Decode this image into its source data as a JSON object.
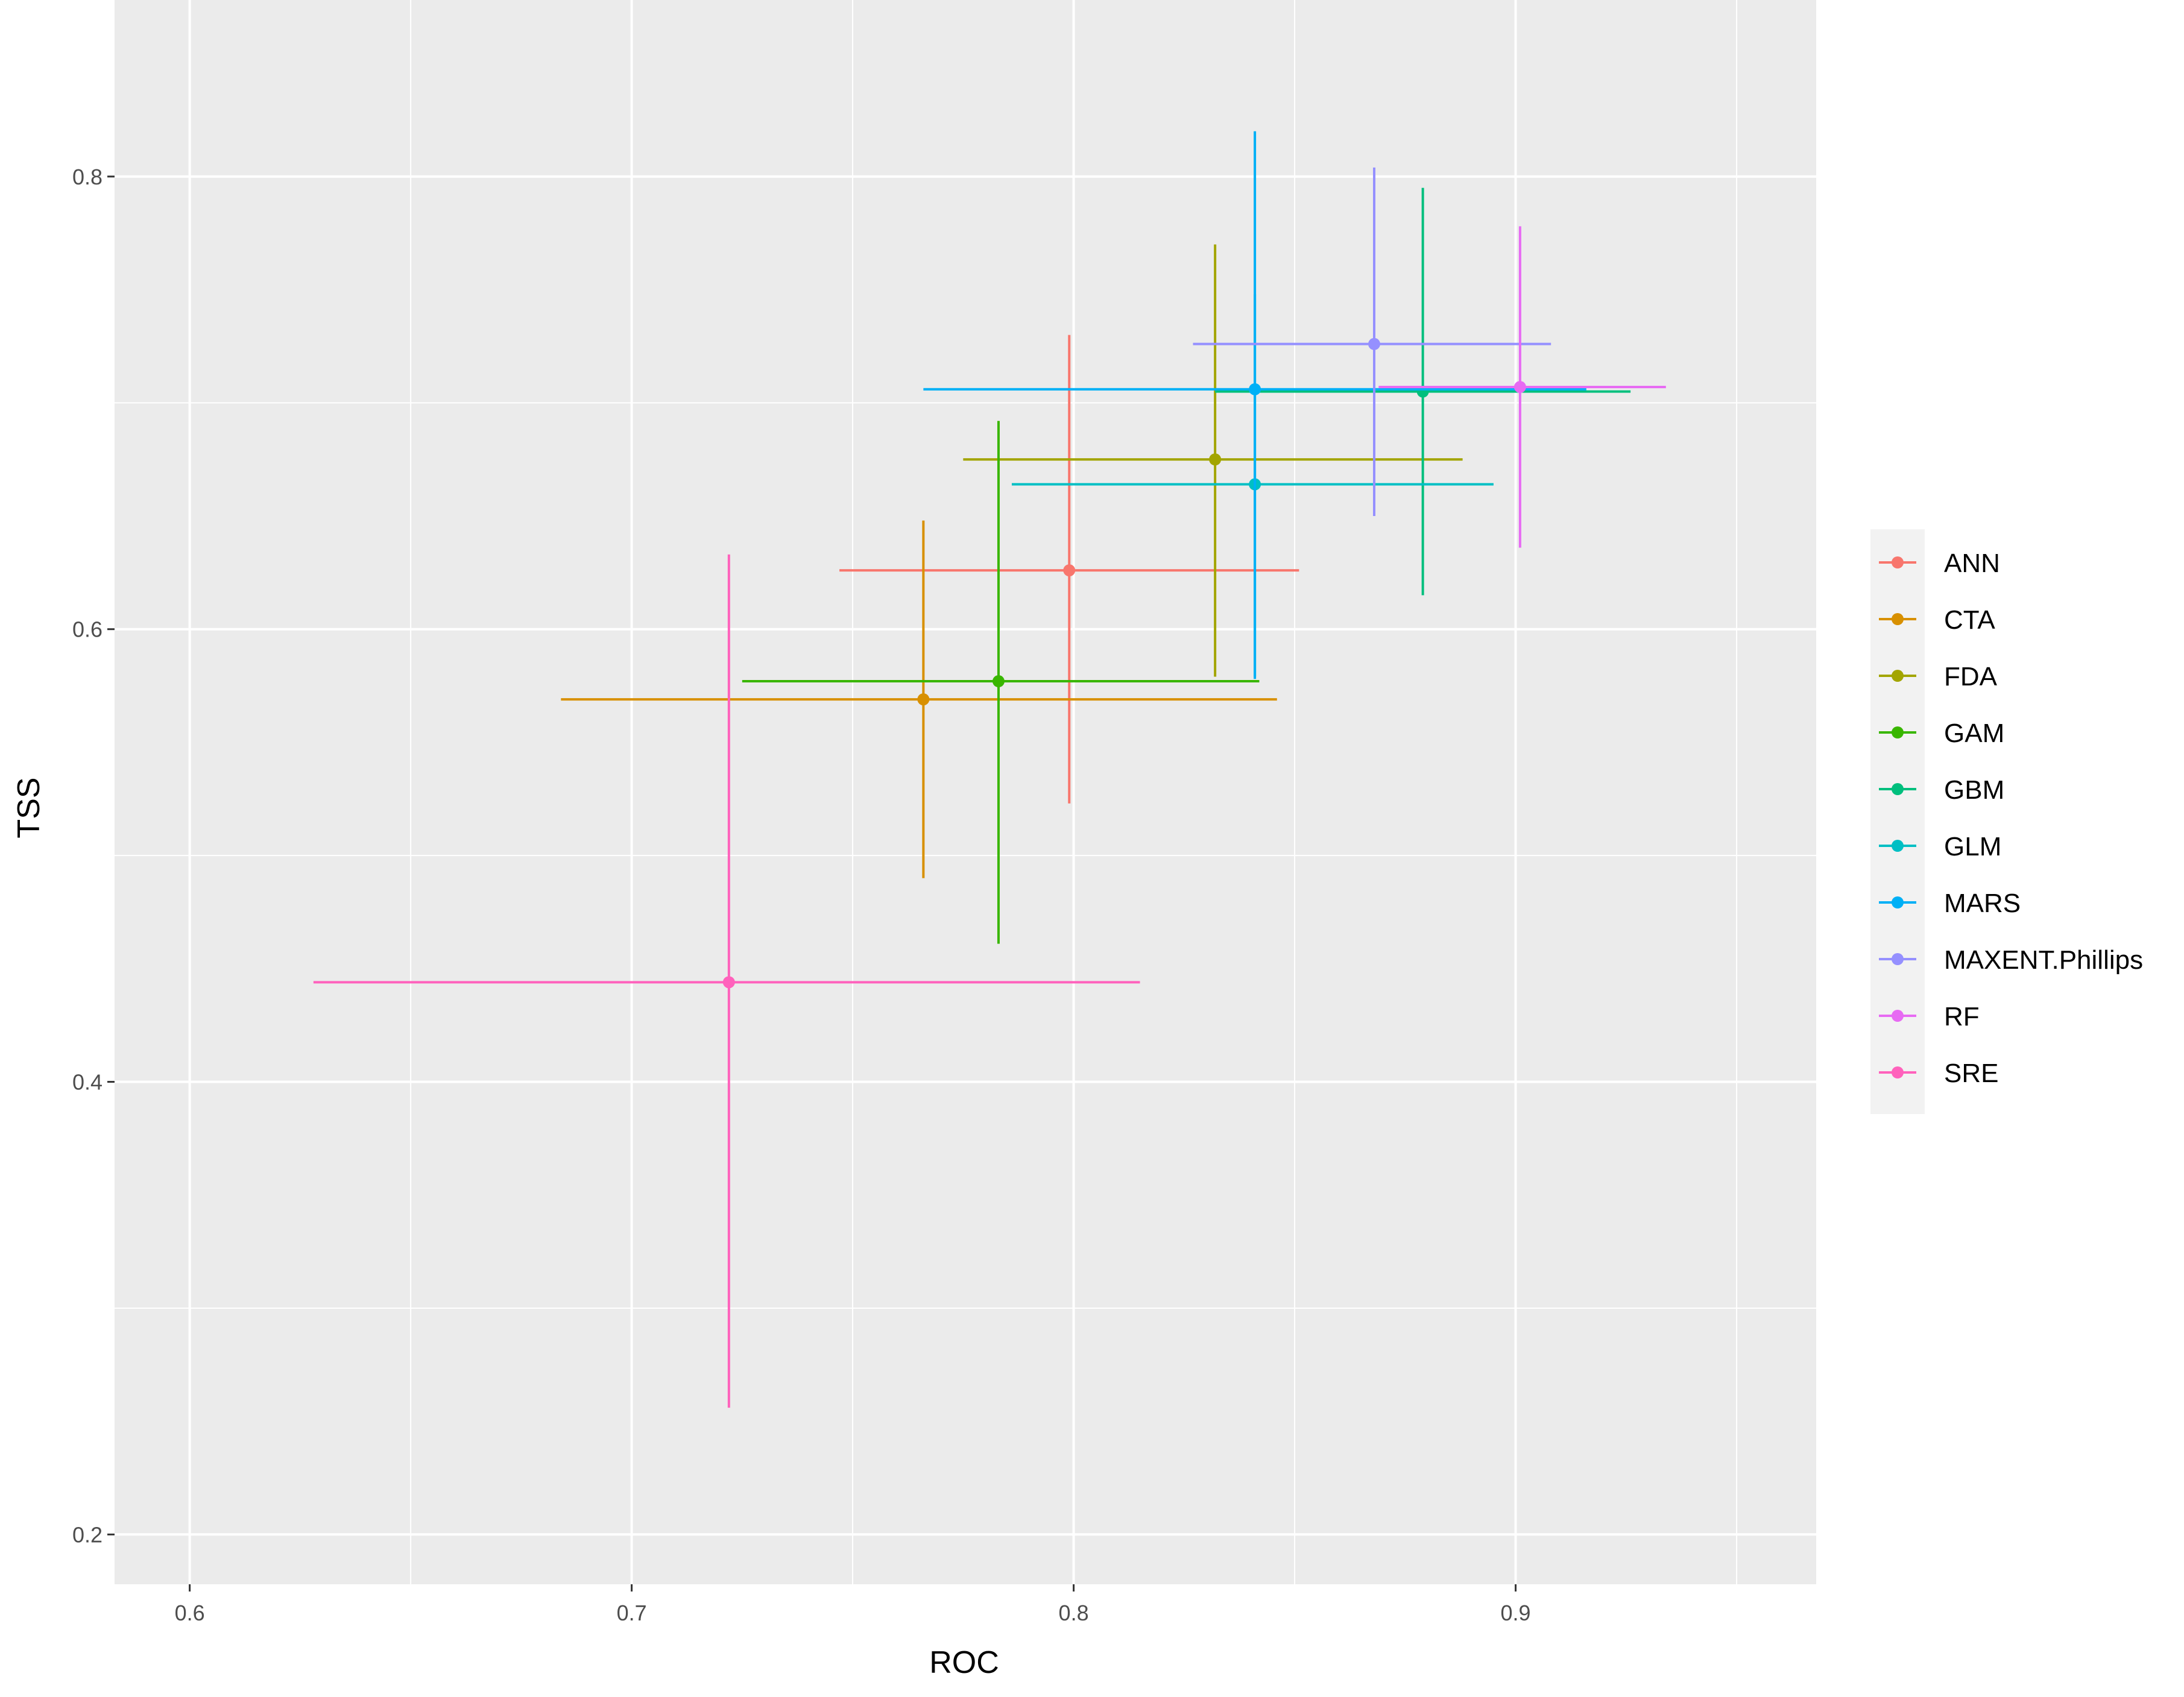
{
  "chart_data": {
    "type": "scatter",
    "title": "",
    "xlabel": "ROC",
    "ylabel": "TSS",
    "xlim": [
      0.583,
      0.968
    ],
    "ylim": [
      0.178,
      0.878
    ],
    "xticks": [
      0.6,
      0.7,
      0.8,
      0.9
    ],
    "yticks": [
      0.2,
      0.4,
      0.6,
      0.8
    ],
    "xtick_labels": [
      "0.6",
      "0.7",
      "0.8",
      "0.9"
    ],
    "ytick_labels": [
      "0.2",
      "0.4",
      "0.6",
      "0.8"
    ],
    "grid": true,
    "legend_position": "right",
    "error_bars": "horizontal bars show ROC range, vertical bars show TSS range",
    "series": [
      {
        "name": "ANN",
        "color": "#F8766D",
        "x": 0.799,
        "y": 0.626,
        "xmin": 0.747,
        "xmax": 0.851,
        "ymin": 0.523,
        "ymax": 0.73
      },
      {
        "name": "CTA",
        "color": "#D89000",
        "x": 0.766,
        "y": 0.569,
        "xmin": 0.684,
        "xmax": 0.846,
        "ymin": 0.49,
        "ymax": 0.648
      },
      {
        "name": "FDA",
        "color": "#A3A500",
        "x": 0.832,
        "y": 0.675,
        "xmin": 0.775,
        "xmax": 0.888,
        "ymin": 0.579,
        "ymax": 0.77
      },
      {
        "name": "GAM",
        "color": "#39B600",
        "x": 0.783,
        "y": 0.577,
        "xmin": 0.725,
        "xmax": 0.842,
        "ymin": 0.461,
        "ymax": 0.692
      },
      {
        "name": "GBM",
        "color": "#00BF7D",
        "x": 0.879,
        "y": 0.705,
        "xmin": 0.832,
        "xmax": 0.926,
        "ymin": 0.615,
        "ymax": 0.795
      },
      {
        "name": "GLM",
        "color": "#00BFC4",
        "x": 0.841,
        "y": 0.664,
        "xmin": 0.786,
        "xmax": 0.895,
        "ymin": 0.579,
        "ymax": 0.748
      },
      {
        "name": "MARS",
        "color": "#00B0F6",
        "x": 0.841,
        "y": 0.706,
        "xmin": 0.766,
        "xmax": 0.916,
        "ymin": 0.578,
        "ymax": 0.82
      },
      {
        "name": "MAXENT.Phillips",
        "color": "#9590FF",
        "x": 0.868,
        "y": 0.726,
        "xmin": 0.827,
        "xmax": 0.908,
        "ymin": 0.65,
        "ymax": 0.804
      },
      {
        "name": "RF",
        "color": "#E76BF3",
        "x": 0.901,
        "y": 0.707,
        "xmin": 0.869,
        "xmax": 0.934,
        "ymin": 0.636,
        "ymax": 0.778
      },
      {
        "name": "SRE",
        "color": "#FF62BC",
        "x": 0.722,
        "y": 0.444,
        "xmin": 0.628,
        "xmax": 0.815,
        "ymin": 0.256,
        "ymax": 0.633
      }
    ]
  }
}
